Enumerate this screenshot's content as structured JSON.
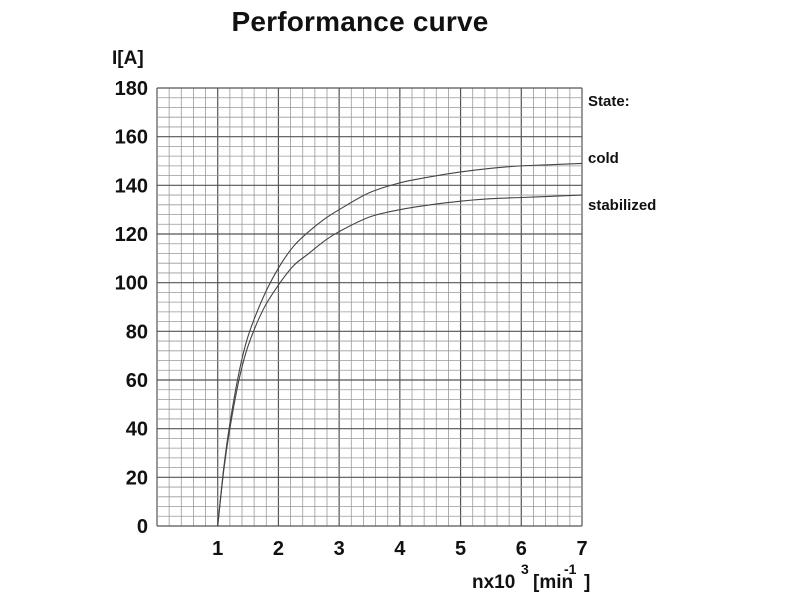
{
  "chart_data": {
    "type": "line",
    "title": "Performance curve",
    "ylabel": "I[A]",
    "xlabel_base": "nx10",
    "xlabel_exp": "3",
    "xlabel_unit": "[min",
    "xlabel_unit_exp": "-1",
    "xlabel_close": "]",
    "xlim": [
      0,
      7
    ],
    "ylim": [
      0,
      180
    ],
    "x_ticks": [
      1,
      2,
      3,
      4,
      5,
      6,
      7
    ],
    "y_ticks": [
      0,
      20,
      40,
      60,
      80,
      100,
      120,
      140,
      160,
      180
    ],
    "grid": true,
    "legend_title": "State:",
    "legend_placement": "right",
    "series": [
      {
        "name": "cold",
        "color": "#444444",
        "x": [
          1.0,
          1.1,
          1.2,
          1.35,
          1.5,
          1.75,
          2.0,
          2.25,
          2.5,
          2.75,
          3.0,
          3.5,
          4.0,
          4.5,
          5.0,
          5.5,
          6.0,
          6.5,
          7.0
        ],
        "y": [
          0,
          24,
          42,
          63,
          78,
          94,
          106,
          115,
          121,
          126,
          130,
          137,
          141,
          143.5,
          145.5,
          147,
          148,
          148.5,
          149
        ]
      },
      {
        "name": "stabilized",
        "color": "#444444",
        "x": [
          1.0,
          1.1,
          1.2,
          1.35,
          1.5,
          1.75,
          2.0,
          2.25,
          2.5,
          2.75,
          3.0,
          3.5,
          4.0,
          4.5,
          5.0,
          5.5,
          6.0,
          6.5,
          7.0
        ],
        "y": [
          0,
          23,
          40,
          60,
          74,
          89,
          99,
          107,
          112,
          117,
          121,
          127,
          130,
          132,
          133.5,
          134.5,
          135,
          135.5,
          136
        ]
      }
    ]
  }
}
